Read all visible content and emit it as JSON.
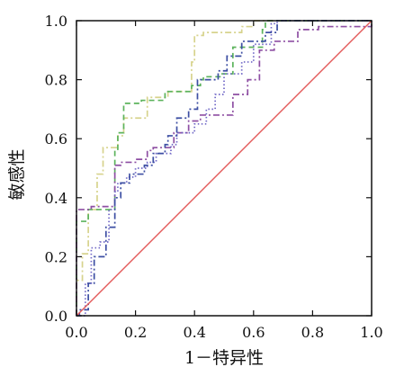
{
  "chart_data": {
    "type": "line",
    "title": "",
    "xlabel": "1－特异性",
    "ylabel": "敏感性",
    "xlim": [
      0,
      1
    ],
    "ylim": [
      0,
      1
    ],
    "x_ticks": [
      "0.0",
      "0.2",
      "0.4",
      "0.6",
      "0.8",
      "1.0"
    ],
    "y_ticks": [
      "0.0",
      "0.2",
      "0.4",
      "0.6",
      "0.8",
      "1.0"
    ],
    "grid": false,
    "legend": "none",
    "series": [
      {
        "color": "#d7d38d",
        "style": "dash-dot",
        "points": [
          [
            0.0,
            0.0
          ],
          [
            0.0,
            0.12
          ],
          [
            0.02,
            0.12
          ],
          [
            0.02,
            0.21
          ],
          [
            0.04,
            0.21
          ],
          [
            0.04,
            0.36
          ],
          [
            0.07,
            0.36
          ],
          [
            0.07,
            0.48
          ],
          [
            0.09,
            0.48
          ],
          [
            0.09,
            0.57
          ],
          [
            0.14,
            0.57
          ],
          [
            0.14,
            0.61
          ],
          [
            0.16,
            0.61
          ],
          [
            0.16,
            0.67
          ],
          [
            0.24,
            0.67
          ],
          [
            0.24,
            0.74
          ],
          [
            0.31,
            0.74
          ],
          [
            0.31,
            0.76
          ],
          [
            0.39,
            0.76
          ],
          [
            0.39,
            0.86
          ],
          [
            0.4,
            0.86
          ],
          [
            0.4,
            0.95
          ],
          [
            0.43,
            0.95
          ],
          [
            0.43,
            0.96
          ],
          [
            0.56,
            0.96
          ],
          [
            0.56,
            0.98
          ],
          [
            0.6,
            0.98
          ],
          [
            0.6,
            1.0
          ],
          [
            1.0,
            1.0
          ]
        ]
      },
      {
        "color": "#5cb35c",
        "style": "dashed",
        "points": [
          [
            0.0,
            0.0
          ],
          [
            0.0,
            0.32
          ],
          [
            0.04,
            0.32
          ],
          [
            0.04,
            0.36
          ],
          [
            0.13,
            0.36
          ],
          [
            0.13,
            0.56
          ],
          [
            0.14,
            0.56
          ],
          [
            0.14,
            0.62
          ],
          [
            0.16,
            0.62
          ],
          [
            0.16,
            0.72
          ],
          [
            0.22,
            0.72
          ],
          [
            0.22,
            0.73
          ],
          [
            0.3,
            0.73
          ],
          [
            0.3,
            0.76
          ],
          [
            0.39,
            0.76
          ],
          [
            0.39,
            0.78
          ],
          [
            0.42,
            0.78
          ],
          [
            0.42,
            0.8
          ],
          [
            0.43,
            0.8
          ],
          [
            0.43,
            0.81
          ],
          [
            0.49,
            0.81
          ],
          [
            0.49,
            0.82
          ],
          [
            0.53,
            0.82
          ],
          [
            0.53,
            0.91
          ],
          [
            0.63,
            0.91
          ],
          [
            0.63,
            0.97
          ],
          [
            0.64,
            0.97
          ],
          [
            0.64,
            1.0
          ],
          [
            1.0,
            1.0
          ]
        ]
      },
      {
        "color": "#8e4fa3",
        "style": "dash-dot",
        "points": [
          [
            0.0,
            0.0
          ],
          [
            0.0,
            0.36
          ],
          [
            0.05,
            0.36
          ],
          [
            0.05,
            0.37
          ],
          [
            0.13,
            0.37
          ],
          [
            0.13,
            0.51
          ],
          [
            0.15,
            0.51
          ],
          [
            0.15,
            0.52
          ],
          [
            0.2,
            0.52
          ],
          [
            0.2,
            0.53
          ],
          [
            0.24,
            0.53
          ],
          [
            0.24,
            0.56
          ],
          [
            0.26,
            0.56
          ],
          [
            0.26,
            0.57
          ],
          [
            0.33,
            0.57
          ],
          [
            0.33,
            0.62
          ],
          [
            0.38,
            0.62
          ],
          [
            0.38,
            0.66
          ],
          [
            0.42,
            0.66
          ],
          [
            0.42,
            0.68
          ],
          [
            0.53,
            0.68
          ],
          [
            0.53,
            0.75
          ],
          [
            0.58,
            0.75
          ],
          [
            0.58,
            0.8
          ],
          [
            0.62,
            0.8
          ],
          [
            0.62,
            0.9
          ],
          [
            0.67,
            0.9
          ],
          [
            0.67,
            0.93
          ],
          [
            0.75,
            0.93
          ],
          [
            0.75,
            0.97
          ],
          [
            0.82,
            0.97
          ],
          [
            0.82,
            0.98
          ],
          [
            1.0,
            0.98
          ],
          [
            1.0,
            1.0
          ]
        ]
      },
      {
        "color": "#6f66c6",
        "style": "dotted",
        "points": [
          [
            0.0,
            0.0
          ],
          [
            0.03,
            0.0
          ],
          [
            0.03,
            0.11
          ],
          [
            0.05,
            0.11
          ],
          [
            0.05,
            0.23
          ],
          [
            0.08,
            0.23
          ],
          [
            0.08,
            0.25
          ],
          [
            0.11,
            0.25
          ],
          [
            0.11,
            0.36
          ],
          [
            0.13,
            0.36
          ],
          [
            0.13,
            0.42
          ],
          [
            0.14,
            0.42
          ],
          [
            0.14,
            0.45
          ],
          [
            0.17,
            0.45
          ],
          [
            0.17,
            0.47
          ],
          [
            0.2,
            0.47
          ],
          [
            0.2,
            0.5
          ],
          [
            0.24,
            0.5
          ],
          [
            0.24,
            0.52
          ],
          [
            0.27,
            0.52
          ],
          [
            0.27,
            0.55
          ],
          [
            0.32,
            0.55
          ],
          [
            0.32,
            0.58
          ],
          [
            0.34,
            0.58
          ],
          [
            0.34,
            0.62
          ],
          [
            0.4,
            0.62
          ],
          [
            0.4,
            0.65
          ],
          [
            0.44,
            0.65
          ],
          [
            0.44,
            0.7
          ],
          [
            0.47,
            0.7
          ],
          [
            0.47,
            0.75
          ],
          [
            0.5,
            0.75
          ],
          [
            0.5,
            0.82
          ],
          [
            0.56,
            0.82
          ],
          [
            0.56,
            0.86
          ],
          [
            0.6,
            0.86
          ],
          [
            0.6,
            0.92
          ],
          [
            0.66,
            0.92
          ],
          [
            0.66,
            0.99
          ],
          [
            0.68,
            0.99
          ],
          [
            0.68,
            1.0
          ],
          [
            1.0,
            1.0
          ]
        ]
      },
      {
        "color": "#3d4fa3",
        "style": "dash-dot",
        "points": [
          [
            0.0,
            0.0
          ],
          [
            0.01,
            0.0
          ],
          [
            0.01,
            0.02
          ],
          [
            0.04,
            0.02
          ],
          [
            0.04,
            0.11
          ],
          [
            0.06,
            0.11
          ],
          [
            0.06,
            0.2
          ],
          [
            0.1,
            0.2
          ],
          [
            0.1,
            0.3
          ],
          [
            0.13,
            0.3
          ],
          [
            0.13,
            0.4
          ],
          [
            0.15,
            0.4
          ],
          [
            0.15,
            0.45
          ],
          [
            0.18,
            0.45
          ],
          [
            0.18,
            0.48
          ],
          [
            0.23,
            0.48
          ],
          [
            0.23,
            0.51
          ],
          [
            0.26,
            0.51
          ],
          [
            0.26,
            0.55
          ],
          [
            0.3,
            0.55
          ],
          [
            0.3,
            0.58
          ],
          [
            0.31,
            0.58
          ],
          [
            0.31,
            0.61
          ],
          [
            0.34,
            0.61
          ],
          [
            0.34,
            0.67
          ],
          [
            0.38,
            0.67
          ],
          [
            0.38,
            0.7
          ],
          [
            0.41,
            0.7
          ],
          [
            0.41,
            0.8
          ],
          [
            0.48,
            0.8
          ],
          [
            0.48,
            0.83
          ],
          [
            0.51,
            0.83
          ],
          [
            0.51,
            0.88
          ],
          [
            0.56,
            0.88
          ],
          [
            0.56,
            0.93
          ],
          [
            0.64,
            0.93
          ],
          [
            0.64,
            0.96
          ],
          [
            0.68,
            0.96
          ],
          [
            0.68,
            1.0
          ],
          [
            1.0,
            1.0
          ]
        ]
      },
      {
        "color": "#e35a5a",
        "style": "solid",
        "points": [
          [
            0.0,
            0.0
          ],
          [
            1.0,
            1.0
          ]
        ]
      }
    ]
  }
}
